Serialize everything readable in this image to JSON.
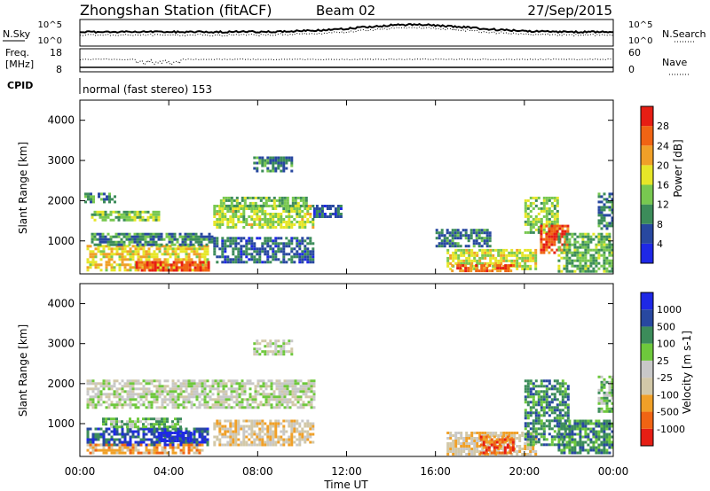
{
  "header": {
    "station": "Zhongshan Station (fitACF)",
    "beam": "Beam 02",
    "date": "27/Sep/2015",
    "mode": "normal (fast stereo) 153"
  },
  "summary_panels": {
    "noise": {
      "left_label": "N.Sky",
      "right_label": "N.Search",
      "left_ticks": [
        "10^5",
        "10^0"
      ],
      "right_ticks": [
        "10^5",
        "10^0"
      ]
    },
    "freq": {
      "left_label": "Freq.",
      "left_unit": "[MHz]",
      "right_label": "Nave",
      "left_ticks": [
        "18",
        "8"
      ],
      "right_ticks": [
        "60",
        "0"
      ]
    },
    "cpid_label": "CPID"
  },
  "time_axis": {
    "title": "Time UT",
    "ticks": [
      "00:00",
      "04:00",
      "08:00",
      "12:00",
      "16:00",
      "20:00",
      "00:00"
    ]
  },
  "colors": {
    "power": [
      "#1e28e6",
      "#2848a0",
      "#3c8c5a",
      "#78c850",
      "#e6e628",
      "#f0a028",
      "#f06414",
      "#e61e14"
    ],
    "velocity": [
      "#e61e14",
      "#f06414",
      "#f0a028",
      "#d2c8a8",
      "#c8c8c8",
      "#6ec83c",
      "#3c8c5a",
      "#2848a0",
      "#1e28e6"
    ]
  },
  "chart_data": [
    {
      "type": "heatmap",
      "title": "Power",
      "ylabel": "Slant Range [km]",
      "xlabel": "",
      "xlim": [
        0,
        24
      ],
      "ylim": [
        180,
        4500
      ],
      "yticks": [
        1000,
        2000,
        3000,
        4000
      ],
      "colorbar": {
        "label": "Power [dB]",
        "ticks": [
          "4",
          "8",
          "12",
          "16",
          "20",
          "24",
          "28"
        ],
        "range": [
          0,
          30
        ]
      },
      "blobs": [
        {
          "t0": 0.2,
          "t1": 1.6,
          "r0": 2000,
          "r1": 2200,
          "v": 10
        },
        {
          "t0": 0.5,
          "t1": 3.5,
          "r0": 1500,
          "r1": 1750,
          "v": 13
        },
        {
          "t0": 0.3,
          "t1": 5.8,
          "r0": 300,
          "r1": 900,
          "v": 18
        },
        {
          "t0": 2.5,
          "t1": 5.8,
          "r0": 280,
          "r1": 500,
          "v": 26
        },
        {
          "t0": 0.5,
          "t1": 6.0,
          "r0": 900,
          "r1": 1200,
          "v": 9
        },
        {
          "t0": 6.0,
          "t1": 10.5,
          "r0": 1350,
          "r1": 1900,
          "v": 15
        },
        {
          "t0": 6.3,
          "t1": 10.2,
          "r0": 1900,
          "r1": 2100,
          "v": 12
        },
        {
          "t0": 7.8,
          "t1": 9.5,
          "r0": 2750,
          "r1": 3100,
          "v": 9
        },
        {
          "t0": 6.0,
          "t1": 10.5,
          "r0": 500,
          "r1": 1100,
          "v": 7
        },
        {
          "t0": 10.5,
          "t1": 11.8,
          "r0": 1600,
          "r1": 1900,
          "v": 6
        },
        {
          "t0": 16.5,
          "t1": 20.5,
          "r0": 300,
          "r1": 800,
          "v": 16
        },
        {
          "t0": 16.7,
          "t1": 19.5,
          "r0": 280,
          "r1": 420,
          "v": 24
        },
        {
          "t0": 16.0,
          "t1": 18.5,
          "r0": 900,
          "r1": 1300,
          "v": 8
        },
        {
          "t0": 20.0,
          "t1": 21.5,
          "r0": 1200,
          "r1": 2100,
          "v": 14
        },
        {
          "t0": 20.7,
          "t1": 21.9,
          "r0": 700,
          "r1": 1400,
          "v": 25
        },
        {
          "t0": 21.5,
          "t1": 24.0,
          "r0": 250,
          "r1": 1200,
          "v": 12
        },
        {
          "t0": 23.3,
          "t1": 24.0,
          "r0": 1300,
          "r1": 2200,
          "v": 9
        }
      ]
    },
    {
      "type": "heatmap",
      "title": "Velocity",
      "ylabel": "Slant Range [km]",
      "xlabel": "Time UT",
      "xlim": [
        0,
        24
      ],
      "ylim": [
        180,
        4500
      ],
      "yticks": [
        1000,
        2000,
        3000,
        4000
      ],
      "colorbar": {
        "label": "Velocity [m s-1]",
        "ticks": [
          "1000",
          "500",
          "100",
          "25",
          "-25",
          "-100",
          "-500",
          "-1000"
        ]
      },
      "blobs": [
        {
          "t0": 0.3,
          "t1": 10.5,
          "r0": 1400,
          "r1": 2100,
          "v": 4
        },
        {
          "t0": 7.8,
          "t1": 9.5,
          "r0": 2750,
          "r1": 3100,
          "v": 4
        },
        {
          "t0": 0.3,
          "t1": 5.8,
          "r0": 500,
          "r1": 900,
          "v": 7
        },
        {
          "t0": 0.3,
          "t1": 5.5,
          "r0": 250,
          "r1": 500,
          "v": 2
        },
        {
          "t0": 3.5,
          "t1": 5.0,
          "r0": 600,
          "r1": 800,
          "v": 8
        },
        {
          "t0": 1.0,
          "t1": 4.5,
          "r0": 900,
          "r1": 1150,
          "v": 5
        },
        {
          "t0": 6.0,
          "t1": 10.5,
          "r0": 500,
          "r1": 1100,
          "v": 3
        },
        {
          "t0": 16.5,
          "t1": 20.5,
          "r0": 250,
          "r1": 800,
          "v": 3
        },
        {
          "t0": 18.0,
          "t1": 19.5,
          "r0": 300,
          "r1": 700,
          "v": 1
        },
        {
          "t0": 20.0,
          "t1": 22.0,
          "r0": 500,
          "r1": 2100,
          "v": 6
        },
        {
          "t0": 21.5,
          "t1": 24.0,
          "r0": 250,
          "r1": 1100,
          "v": 6
        },
        {
          "t0": 23.3,
          "t1": 24.0,
          "r0": 1300,
          "r1": 2200,
          "v": 5
        }
      ]
    }
  ]
}
